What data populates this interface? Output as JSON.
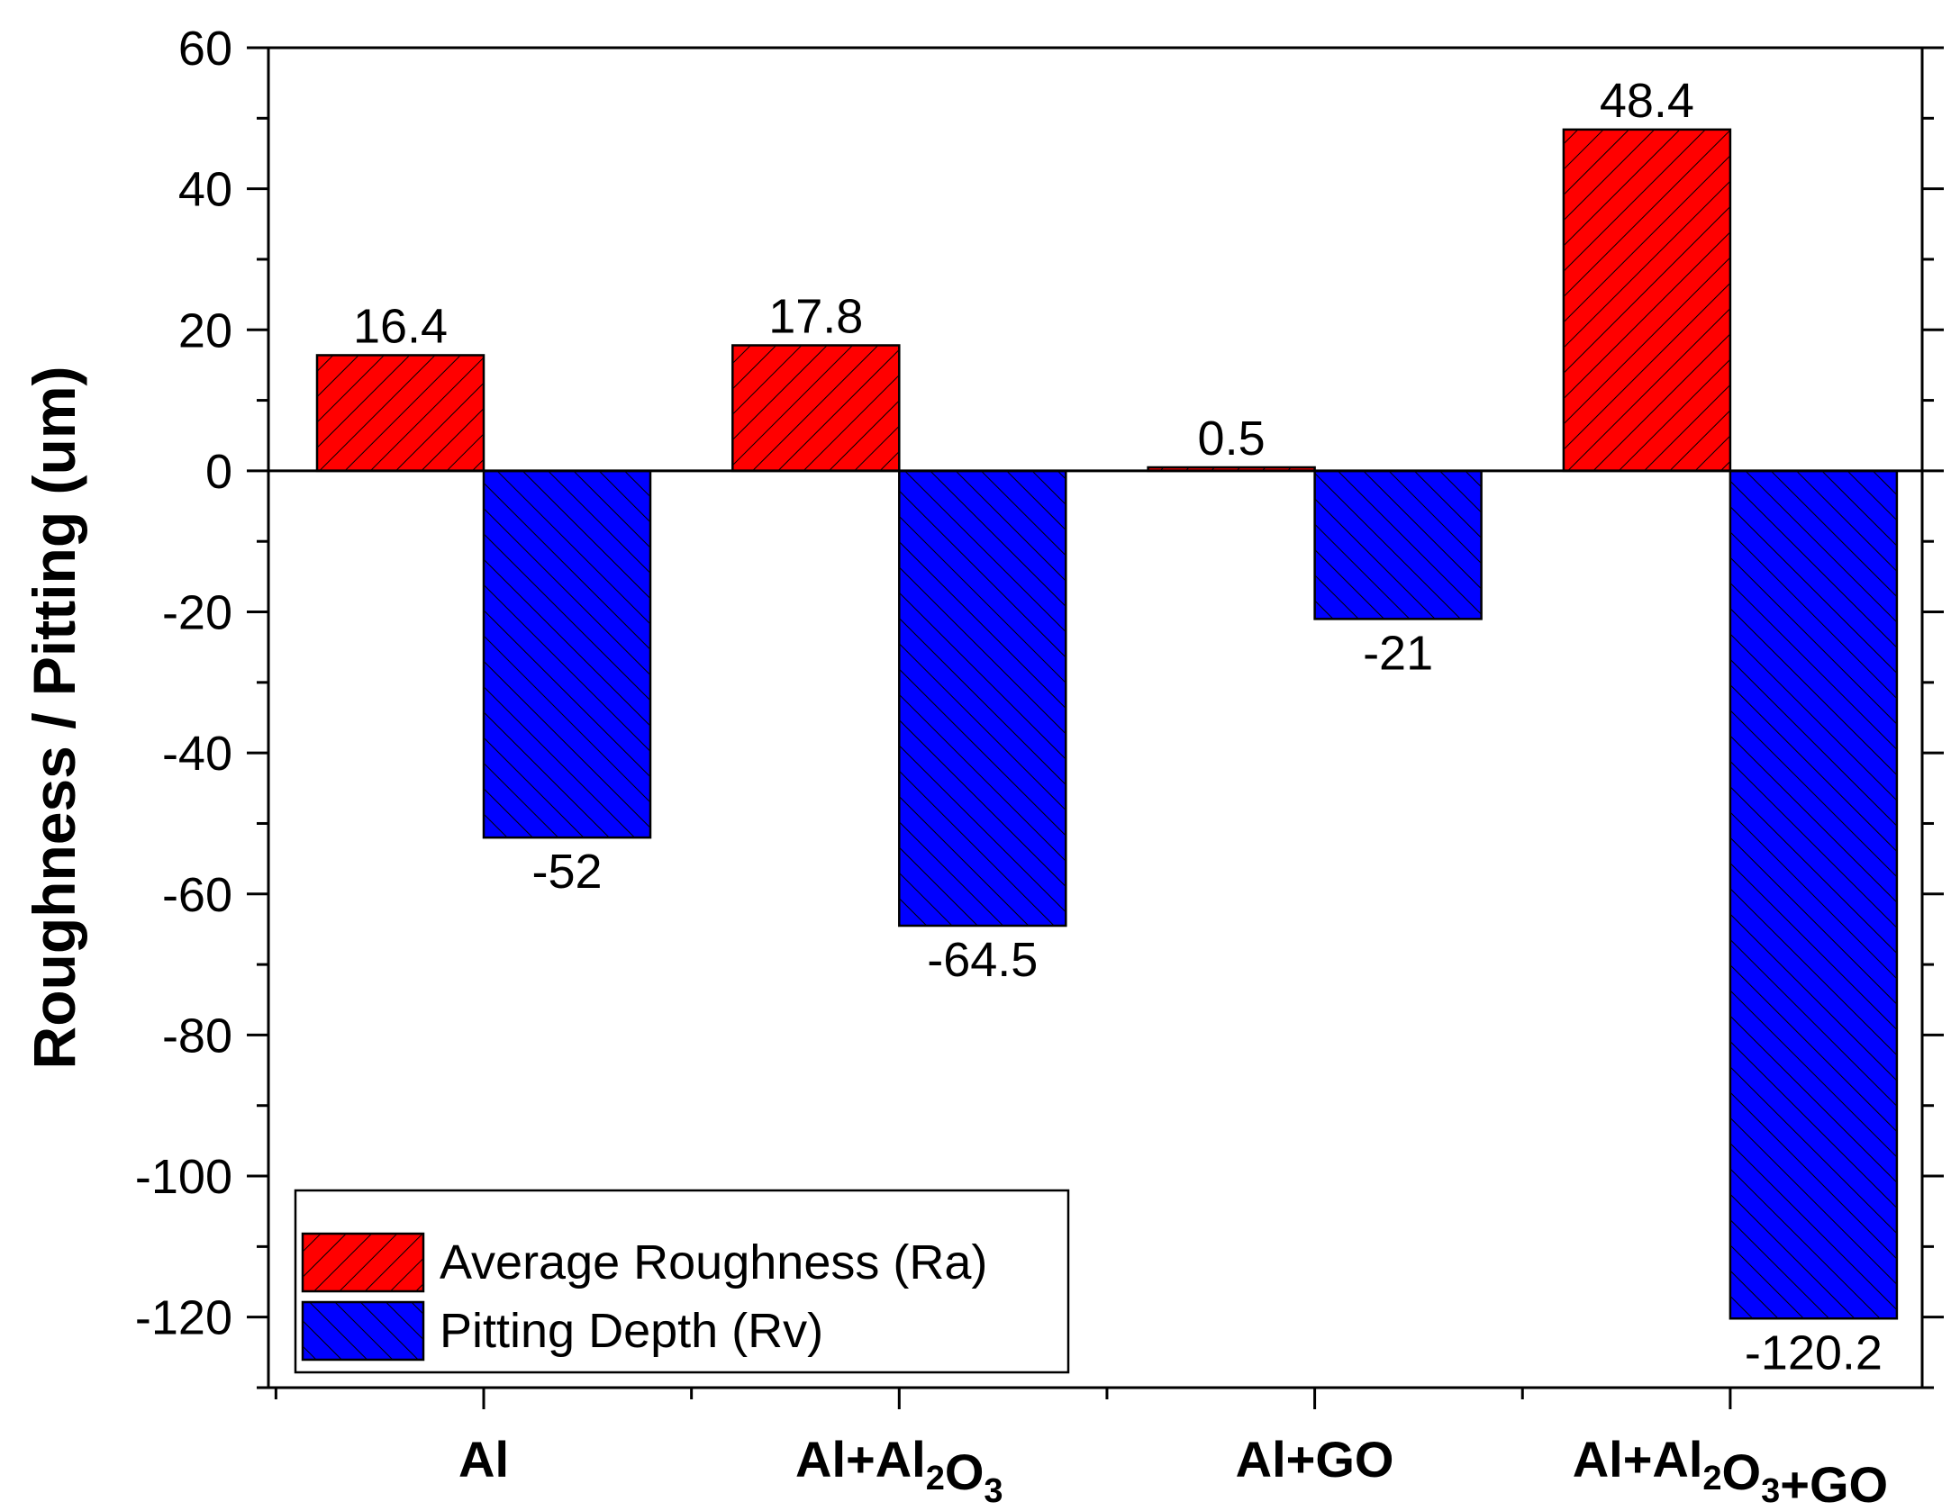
{
  "chart_data": {
    "type": "bar",
    "title": "",
    "xlabel": "",
    "ylabel": "Roughness / Pitting (um)",
    "ylim": [
      -130,
      60
    ],
    "yticks": [
      60,
      40,
      20,
      0,
      -20,
      -40,
      -60,
      -80,
      -100,
      -120
    ],
    "grid": false,
    "legend_position": "bottom-left",
    "categories": [
      {
        "parts": [
          {
            "text": "Al",
            "sub": ""
          }
        ]
      },
      {
        "parts": [
          {
            "text": "Al+Al",
            "sub": "2"
          },
          {
            "text": "O",
            "sub": "3"
          }
        ]
      },
      {
        "parts": [
          {
            "text": "Al+GO",
            "sub": ""
          }
        ]
      },
      {
        "parts": [
          {
            "text": "Al+Al",
            "sub": "2"
          },
          {
            "text": "O",
            "sub": "3"
          },
          {
            "text": "+GO",
            "sub": ""
          }
        ]
      }
    ],
    "series": [
      {
        "name": "Average Roughness (Ra)",
        "color": "#ff0000",
        "hatch": "forward",
        "values": [
          16.4,
          17.8,
          0.5,
          48.4
        ],
        "labels": [
          "16.4",
          "17.8",
          "0.5",
          "48.4"
        ]
      },
      {
        "name": "Pitting Depth (Rv)",
        "color": "#0000ff",
        "hatch": "backward",
        "values": [
          -52,
          -64.5,
          -21,
          -120.2
        ],
        "labels": [
          "-52",
          "-64.5",
          "-21",
          "-120.2"
        ]
      }
    ]
  }
}
